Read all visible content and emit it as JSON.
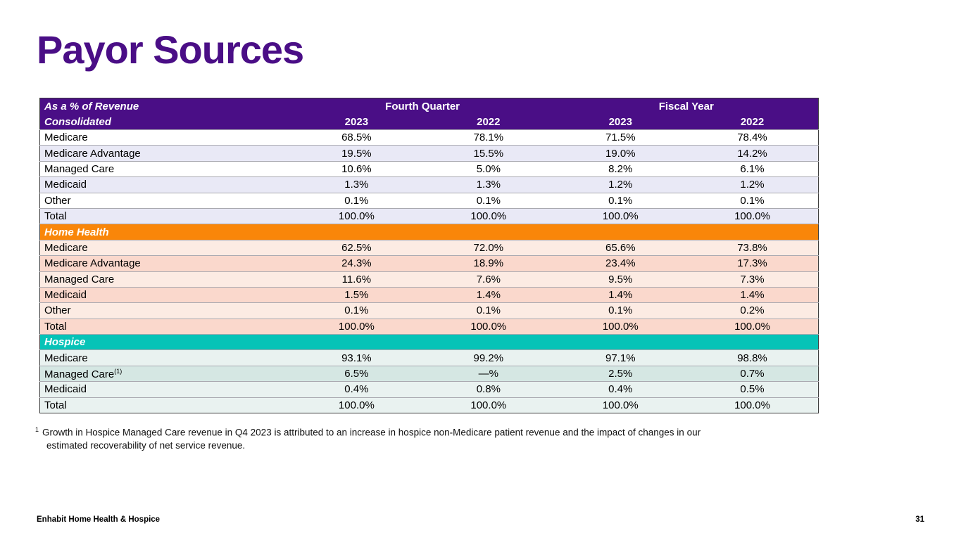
{
  "slide": {
    "title": "Payor Sources",
    "footer_left": "Enhabit Home Health & Hospice",
    "page_number": "31"
  },
  "colors": {
    "header_purple": "#4A0E86",
    "home_health_orange": "#F98609",
    "hospice_teal": "#06C3B7",
    "stripe_lavender": "#E9E9F6",
    "stripe_pink_light": "#FCEBE3",
    "stripe_pink_dark": "#FAD8CC",
    "stripe_teal_light": "#E9F2F0",
    "stripe_teal_dark": "#D5E7E3"
  },
  "table": {
    "corner_line1": "As a % of Revenue",
    "group_headers": [
      "Fourth Quarter",
      "Fiscal Year"
    ],
    "year_headers": [
      "2023",
      "2022",
      "2023",
      "2022"
    ],
    "sections": [
      {
        "id": "consolidated",
        "label": "Consolidated",
        "rows": [
          {
            "label": "Medicare",
            "values": [
              "68.5%",
              "78.1%",
              "71.5%",
              "78.4%"
            ]
          },
          {
            "label": "Medicare Advantage",
            "values": [
              "19.5%",
              "15.5%",
              "19.0%",
              "14.2%"
            ]
          },
          {
            "label": "Managed Care",
            "values": [
              "10.6%",
              "5.0%",
              "8.2%",
              "6.1%"
            ]
          },
          {
            "label": "Medicaid",
            "values": [
              "1.3%",
              "1.3%",
              "1.2%",
              "1.2%"
            ]
          },
          {
            "label": "Other",
            "values": [
              "0.1%",
              "0.1%",
              "0.1%",
              "0.1%"
            ]
          },
          {
            "label": "Total",
            "values": [
              "100.0%",
              "100.0%",
              "100.0%",
              "100.0%"
            ]
          }
        ]
      },
      {
        "id": "home-health",
        "label": "Home Health",
        "rows": [
          {
            "label": "Medicare",
            "values": [
              "62.5%",
              "72.0%",
              "65.6%",
              "73.8%"
            ]
          },
          {
            "label": "Medicare Advantage",
            "values": [
              "24.3%",
              "18.9%",
              "23.4%",
              "17.3%"
            ]
          },
          {
            "label": "Managed Care",
            "values": [
              "11.6%",
              "7.6%",
              "9.5%",
              "7.3%"
            ]
          },
          {
            "label": "Medicaid",
            "values": [
              "1.5%",
              "1.4%",
              "1.4%",
              "1.4%"
            ]
          },
          {
            "label": "Other",
            "values": [
              "0.1%",
              "0.1%",
              "0.1%",
              "0.2%"
            ]
          },
          {
            "label": "Total",
            "values": [
              "100.0%",
              "100.0%",
              "100.0%",
              "100.0%"
            ]
          }
        ]
      },
      {
        "id": "hospice",
        "label": "Hospice",
        "rows": [
          {
            "label": "Medicare",
            "values": [
              "93.1%",
              "99.2%",
              "97.1%",
              "98.8%"
            ]
          },
          {
            "label": "Managed Care",
            "sup": "(1)",
            "values": [
              "6.5%",
              "—%",
              "2.5%",
              "0.7%"
            ]
          },
          {
            "label": "Medicaid",
            "values": [
              "0.4%",
              "0.8%",
              "0.4%",
              "0.5%"
            ]
          },
          {
            "label": "Total",
            "values": [
              "100.0%",
              "100.0%",
              "100.0%",
              "100.0%"
            ]
          }
        ]
      }
    ]
  },
  "footnote": {
    "marker": "1",
    "text": "Growth in Hospice Managed Care revenue in Q4 2023 is attributed to an increase in hospice non-Medicare patient revenue and the impact of changes in our estimated recoverability of net service revenue."
  }
}
